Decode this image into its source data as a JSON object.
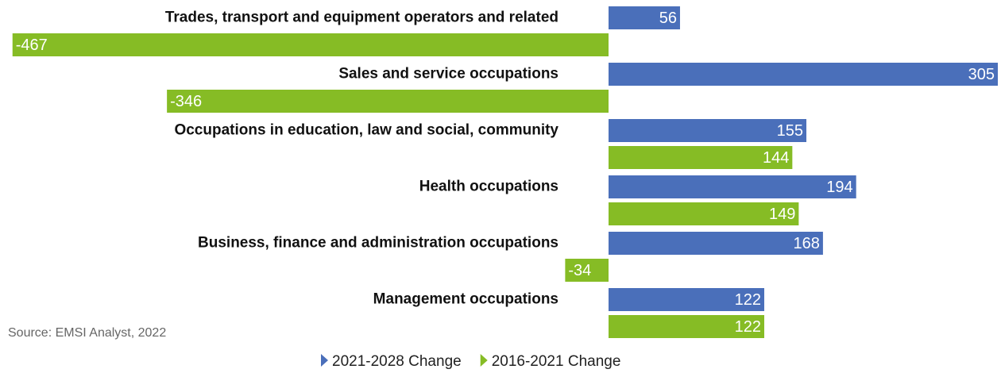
{
  "chart_data": {
    "type": "bar",
    "orientation": "horizontal",
    "categories": [
      "Trades, transport and equipment operators and related",
      "Sales and service occupations",
      "Occupations in education, law and social, community",
      "Health occupations",
      "Business, finance and administration occupations",
      "Management occupations"
    ],
    "series": [
      {
        "name": "2021-2028 Change",
        "color": "#4a6fba",
        "values": [
          56,
          305,
          155,
          194,
          168,
          122
        ]
      },
      {
        "name": "2016-2021 Change",
        "color": "#86bc25",
        "values": [
          -467,
          -346,
          144,
          149,
          -34,
          122
        ]
      }
    ],
    "source": "Source: EMSI Analyst, 2022"
  }
}
